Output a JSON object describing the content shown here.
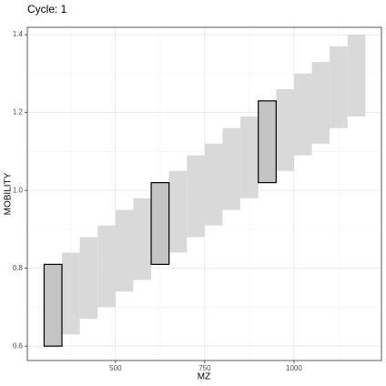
{
  "chart_data": {
    "type": "rect",
    "title": "Cycle: 1",
    "x_label": "MZ",
    "y_label": "MOBILITY",
    "xlim": [
      253,
      1245
    ],
    "ylim": [
      0.563,
      1.419
    ],
    "xticks": [
      500,
      750,
      1000
    ],
    "yticks": [
      0.6,
      0.8,
      {
        "value": 1,
        "label": "1.0"
      },
      1.2,
      1.4
    ],
    "xminor": [
      375,
      625,
      875,
      1125
    ],
    "yminor": [
      0.7,
      0.9,
      1.1,
      1.3
    ],
    "grid": true,
    "fill": "#d9d9d9",
    "highlight_fill": "#c4c4c4",
    "highlight_stroke": "#000000",
    "rects": [
      {
        "xmin": 350,
        "xmax": 400,
        "ymin": 0.63,
        "ymax": 0.84
      },
      {
        "xmin": 400,
        "xmax": 450,
        "ymin": 0.67,
        "ymax": 0.88
      },
      {
        "xmin": 450,
        "xmax": 500,
        "ymin": 0.7,
        "ymax": 0.91
      },
      {
        "xmin": 500,
        "xmax": 550,
        "ymin": 0.74,
        "ymax": 0.95
      },
      {
        "xmin": 550,
        "xmax": 600,
        "ymin": 0.77,
        "ymax": 0.98
      },
      {
        "xmin": 650,
        "xmax": 700,
        "ymin": 0.84,
        "ymax": 1.05
      },
      {
        "xmin": 700,
        "xmax": 750,
        "ymin": 0.88,
        "ymax": 1.09
      },
      {
        "xmin": 750,
        "xmax": 800,
        "ymin": 0.91,
        "ymax": 1.12
      },
      {
        "xmin": 800,
        "xmax": 850,
        "ymin": 0.95,
        "ymax": 1.16
      },
      {
        "xmin": 850,
        "xmax": 900,
        "ymin": 0.98,
        "ymax": 1.19
      },
      {
        "xmin": 950,
        "xmax": 1000,
        "ymin": 1.05,
        "ymax": 1.26
      },
      {
        "xmin": 1000,
        "xmax": 1050,
        "ymin": 1.09,
        "ymax": 1.3
      },
      {
        "xmin": 1050,
        "xmax": 1100,
        "ymin": 1.12,
        "ymax": 1.33
      },
      {
        "xmin": 1100,
        "xmax": 1150,
        "ymin": 1.16,
        "ymax": 1.37
      },
      {
        "xmin": 1150,
        "xmax": 1200,
        "ymin": 1.19,
        "ymax": 1.4
      }
    ],
    "highlighted": [
      {
        "xmin": 300,
        "xmax": 350,
        "ymin": 0.6,
        "ymax": 0.81
      },
      {
        "xmin": 600,
        "xmax": 650,
        "ymin": 0.81,
        "ymax": 1.02
      },
      {
        "xmin": 900,
        "xmax": 950,
        "ymin": 1.02,
        "ymax": 1.23
      }
    ]
  }
}
